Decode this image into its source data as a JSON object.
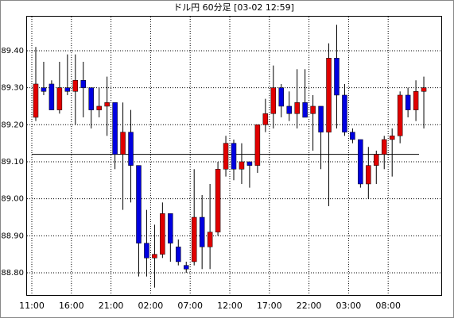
{
  "chart_data": {
    "type": "candlestick",
    "title": "ドル円 60分足 [03-02 12:59]",
    "categories": [
      "11:00",
      null,
      null,
      null,
      null,
      "16:00",
      null,
      null,
      null,
      null,
      "21:00",
      null,
      null,
      null,
      null,
      "02:00",
      null,
      null,
      null,
      null,
      "07:00",
      null,
      null,
      null,
      null,
      "12:00",
      null,
      null,
      null,
      null,
      "17:00",
      null,
      null,
      null,
      null,
      "22:00",
      null,
      null,
      null,
      null,
      "03:00",
      null,
      null,
      null,
      null,
      "08:00",
      null,
      null,
      null,
      null
    ],
    "open": [
      89.22,
      89.3,
      89.31,
      89.24,
      89.3,
      89.29,
      89.32,
      89.3,
      89.24,
      89.25,
      89.26,
      89.12,
      89.18,
      89.09,
      88.88,
      88.84,
      88.85,
      88.96,
      88.87,
      88.82,
      88.83,
      88.95,
      88.87,
      88.91,
      89.08,
      89.15,
      89.08,
      89.1,
      89.09,
      89.2,
      89.23,
      89.3,
      89.25,
      89.23,
      89.26,
      89.23,
      89.25,
      89.18,
      89.38,
      89.28,
      89.18,
      89.16,
      89.04,
      89.09,
      89.12,
      89.16,
      89.17,
      89.28,
      89.24,
      89.29
    ],
    "high": [
      89.41,
      89.37,
      89.32,
      89.37,
      89.39,
      89.39,
      89.37,
      89.3,
      89.3,
      89.33,
      89.26,
      89.26,
      89.24,
      89.09,
      88.97,
      88.93,
      88.99,
      88.96,
      88.89,
      88.83,
      89.08,
      89.01,
      89.04,
      89.1,
      89.17,
      89.16,
      89.15,
      89.1,
      89.2,
      89.27,
      89.36,
      89.31,
      89.29,
      89.35,
      89.35,
      89.28,
      89.25,
      89.42,
      89.47,
      89.31,
      89.19,
      89.16,
      89.14,
      89.13,
      89.17,
      89.19,
      89.29,
      89.3,
      89.32,
      89.33
    ],
    "low": [
      89.21,
      89.28,
      89.24,
      89.23,
      89.28,
      89.2,
      89.22,
      89.19,
      89.22,
      89.17,
      89.08,
      88.97,
      88.99,
      88.79,
      88.79,
      88.76,
      88.84,
      88.83,
      88.82,
      88.8,
      88.82,
      88.81,
      88.81,
      88.9,
      89.06,
      89.05,
      89.04,
      89.03,
      89.07,
      89.18,
      89.19,
      89.22,
      89.21,
      89.19,
      89.22,
      89.13,
      89.08,
      88.98,
      89.19,
      89.17,
      89.15,
      89.03,
      89.0,
      89.04,
      89.08,
      89.06,
      89.15,
      89.22,
      89.21,
      89.19
    ],
    "close": [
      89.31,
      89.29,
      89.24,
      89.3,
      89.29,
      89.32,
      89.3,
      89.24,
      89.25,
      89.26,
      89.12,
      89.18,
      89.09,
      88.88,
      88.84,
      88.85,
      88.96,
      88.88,
      88.83,
      88.81,
      88.95,
      88.87,
      88.91,
      89.08,
      89.15,
      89.08,
      89.1,
      89.09,
      89.2,
      89.23,
      89.3,
      89.25,
      89.23,
      89.26,
      89.22,
      89.25,
      89.18,
      89.38,
      89.28,
      89.18,
      89.16,
      89.04,
      89.09,
      89.12,
      89.16,
      89.17,
      89.28,
      89.24,
      89.29,
      89.3
    ],
    "up_color": "#e00000",
    "down_color": "#0000e0",
    "reference_line": 89.12,
    "ylim": [
      88.74,
      89.492
    ],
    "yticks": [
      {
        "value": 88.8,
        "label": "88.80"
      },
      {
        "value": 88.9,
        "label": "88.90"
      },
      {
        "value": 89.0,
        "label": "89.00"
      },
      {
        "value": 89.1,
        "label": "89.10"
      },
      {
        "value": 89.2,
        "label": "89.20"
      },
      {
        "value": 89.3,
        "label": "89.30"
      },
      {
        "value": 89.4,
        "label": "89.40"
      }
    ],
    "grid": true
  }
}
